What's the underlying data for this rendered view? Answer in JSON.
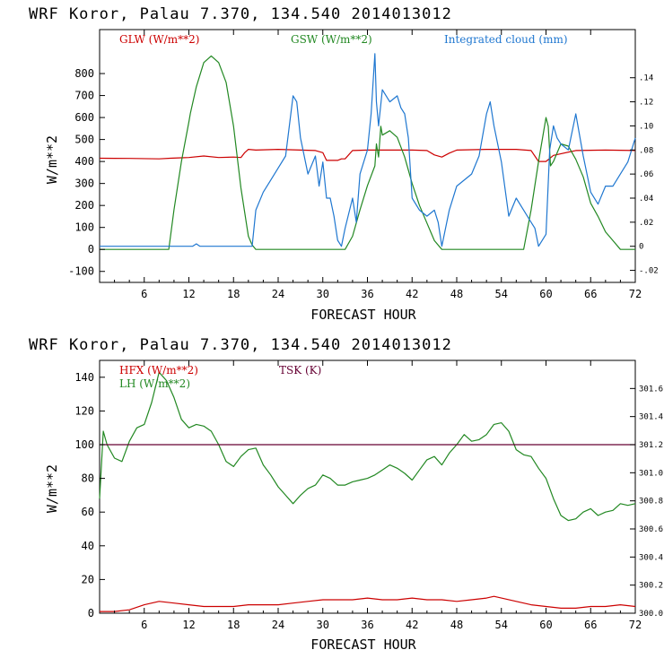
{
  "chart_data": [
    {
      "type": "line",
      "title": "WRF   Koror, Palau   7.370, 134.540  2014013012",
      "xlabel": "FORECAST HOUR",
      "ylabel": "W/m**2",
      "xlim": [
        0,
        72
      ],
      "ylim": [
        -150,
        1000
      ],
      "y2lim": [
        -0.03,
        0.18
      ],
      "xticks": [
        6,
        12,
        18,
        24,
        30,
        36,
        42,
        48,
        54,
        60,
        66,
        72
      ],
      "yticks": [
        -100,
        0,
        100,
        200,
        300,
        400,
        500,
        600,
        700,
        800
      ],
      "y2ticks": [
        -0.02,
        0,
        0.02,
        0.04,
        0.06,
        0.08,
        0.1,
        0.12,
        0.14
      ],
      "y2ticklabels": [
        "-.02",
        "0",
        ".02",
        ".04",
        ".06",
        ".08",
        ".10",
        ".12",
        ".14"
      ],
      "legend": "top",
      "series": [
        {
          "name": "GLW (W/m**2)",
          "color": "#cc0000",
          "axis": "left",
          "x": [
            0,
            4,
            8,
            9.5,
            11,
            12,
            14,
            16,
            18,
            19,
            19.5,
            20,
            21,
            24,
            27,
            29,
            30,
            30.5,
            32,
            32.5,
            33,
            34,
            36,
            40,
            42,
            44,
            45,
            46,
            47,
            48,
            52,
            56,
            58,
            59,
            60,
            61,
            64,
            68,
            72
          ],
          "y": [
            415,
            414,
            412,
            415,
            417,
            418,
            425,
            418,
            420,
            418,
            440,
            455,
            452,
            455,
            452,
            450,
            440,
            405,
            405,
            412,
            412,
            450,
            452,
            452,
            452,
            450,
            430,
            420,
            438,
            452,
            455,
            455,
            450,
            400,
            400,
            428,
            450,
            452,
            450
          ]
        },
        {
          "name": "GSW (W/m**2)",
          "color": "#228822",
          "axis": "left",
          "x": [
            0,
            9.3,
            10,
            11,
            12,
            12.2,
            13,
            14,
            15,
            16,
            17,
            18,
            19,
            20,
            20.5,
            21,
            33,
            34,
            35,
            36,
            37,
            37.2,
            37.5,
            37.8,
            38,
            39,
            40,
            41,
            42,
            43,
            44,
            45,
            46,
            57,
            58,
            59,
            60,
            60.3,
            60.6,
            61,
            62,
            63,
            64,
            65,
            66,
            67,
            68,
            69,
            70,
            72
          ],
          "y": [
            0,
            0,
            180,
            400,
            580,
            620,
            740,
            850,
            880,
            850,
            760,
            560,
            280,
            60,
            20,
            0,
            0,
            60,
            180,
            290,
            380,
            480,
            420,
            560,
            520,
            540,
            510,
            420,
            300,
            200,
            120,
            40,
            0,
            0,
            180,
            400,
            600,
            560,
            380,
            400,
            480,
            470,
            410,
            330,
            210,
            150,
            80,
            40,
            0,
            0
          ]
        },
        {
          "name": "Integrated cloud (mm)",
          "color": "#1f77d0",
          "axis": "right",
          "x": [
            0,
            12.5,
            13,
            13.5,
            20.5,
            21,
            22,
            23,
            24,
            25,
            26,
            26.5,
            27,
            28,
            29,
            29.5,
            30,
            30.5,
            31,
            31.5,
            32,
            32.5,
            33,
            34,
            34.5,
            35,
            36,
            36.5,
            37,
            37.2,
            37.5,
            38,
            39,
            40,
            40.5,
            41,
            41.5,
            42,
            43,
            44,
            45,
            45.5,
            46,
            47,
            48,
            49,
            50,
            51,
            52,
            52.5,
            53,
            54,
            55,
            56,
            57,
            58,
            58.5,
            59,
            60,
            60.5,
            61,
            61.5,
            62,
            63,
            64,
            65,
            66,
            67,
            68,
            69,
            70,
            71,
            72
          ],
          "y": [
            0,
            0,
            0.002,
            0,
            0,
            0.03,
            0.045,
            0.055,
            0.065,
            0.075,
            0.125,
            0.12,
            0.09,
            0.06,
            0.075,
            0.05,
            0.07,
            0.04,
            0.04,
            0.025,
            0.005,
            0,
            0.015,
            0.04,
            0.02,
            0.06,
            0.08,
            0.11,
            0.16,
            0.12,
            0.1,
            0.13,
            0.12,
            0.125,
            0.115,
            0.11,
            0.09,
            0.04,
            0.03,
            0.025,
            0.03,
            0.02,
            0,
            0.03,
            0.05,
            0.055,
            0.06,
            0.075,
            0.11,
            0.12,
            0.1,
            0.07,
            0.025,
            0.04,
            0.03,
            0.02,
            0.015,
            0,
            0.01,
            0.08,
            0.1,
            0.09,
            0.085,
            0.08,
            0.11,
            0.075,
            0.045,
            0.035,
            0.05,
            0.05,
            0.06,
            0.07,
            0.09
          ]
        }
      ]
    },
    {
      "type": "line",
      "title": "WRF   Koror, Palau   7.370, 134.540  2014013012",
      "xlabel": "FORECAST HOUR",
      "ylabel": "W/m**2",
      "xlim": [
        0,
        72
      ],
      "ylim": [
        0,
        150
      ],
      "y2lim": [
        300.0,
        301.8
      ],
      "xticks": [
        6,
        12,
        18,
        24,
        30,
        36,
        42,
        48,
        54,
        60,
        66,
        72
      ],
      "yticks": [
        0,
        20,
        40,
        60,
        80,
        100,
        120,
        140
      ],
      "y2ticks": [
        300.0,
        300.2,
        300.4,
        300.6,
        300.8,
        301.0,
        301.2,
        301.4,
        301.6
      ],
      "y2ticklabels": [
        "300.0",
        "300.2",
        "300.4",
        "300.6",
        "300.8",
        "301.0",
        "301.2",
        "301.4",
        "301.6"
      ],
      "legend": "top-left",
      "series": [
        {
          "name": "HFX (W/m**2)",
          "color": "#cc0000",
          "axis": "left",
          "x": [
            0,
            2,
            4,
            6,
            8,
            10,
            12,
            14,
            16,
            18,
            20,
            22,
            24,
            26,
            28,
            30,
            32,
            34,
            36,
            38,
            40,
            42,
            44,
            46,
            48,
            50,
            52,
            53,
            54,
            56,
            58,
            60,
            62,
            64,
            66,
            68,
            70,
            72
          ],
          "y": [
            1,
            1,
            2,
            5,
            7,
            6,
            5,
            4,
            4,
            4,
            5,
            5,
            5,
            6,
            7,
            8,
            8,
            8,
            9,
            8,
            8,
            9,
            8,
            8,
            7,
            8,
            9,
            10,
            9,
            7,
            5,
            4,
            3,
            3,
            4,
            4,
            5,
            4
          ]
        },
        {
          "name": "LH  (W/m**2)",
          "color": "#228822",
          "axis": "left",
          "x": [
            0,
            0.5,
            1,
            2,
            3,
            4,
            5,
            6,
            7,
            8,
            9,
            10,
            11,
            12,
            13,
            14,
            15,
            16,
            17,
            18,
            19,
            20,
            21,
            22,
            23,
            24,
            25,
            26,
            27,
            28,
            29,
            30,
            31,
            32,
            33,
            34,
            35,
            36,
            37,
            38,
            39,
            40,
            41,
            42,
            43,
            44,
            45,
            46,
            47,
            48,
            49,
            50,
            51,
            52,
            53,
            54,
            55,
            56,
            57,
            58,
            59,
            60,
            61,
            62,
            63,
            64,
            65,
            66,
            67,
            68,
            69,
            70,
            71,
            72
          ],
          "y": [
            68,
            108,
            100,
            92,
            90,
            102,
            110,
            112,
            125,
            143,
            138,
            128,
            115,
            110,
            112,
            111,
            108,
            100,
            90,
            87,
            93,
            97,
            98,
            88,
            82,
            75,
            70,
            65,
            70,
            74,
            76,
            82,
            80,
            76,
            76,
            78,
            79,
            80,
            82,
            85,
            88,
            86,
            83,
            79,
            85,
            91,
            93,
            88,
            95,
            100,
            106,
            102,
            103,
            106,
            112,
            113,
            108,
            97,
            94,
            93,
            86,
            80,
            68,
            58,
            55,
            56,
            60,
            62,
            58,
            60,
            61,
            65,
            64,
            65
          ]
        },
        {
          "name": "TSK (K)",
          "color": "#660033",
          "axis": "right",
          "x": [
            0,
            72
          ],
          "y": [
            301.2,
            301.2
          ]
        }
      ]
    }
  ]
}
